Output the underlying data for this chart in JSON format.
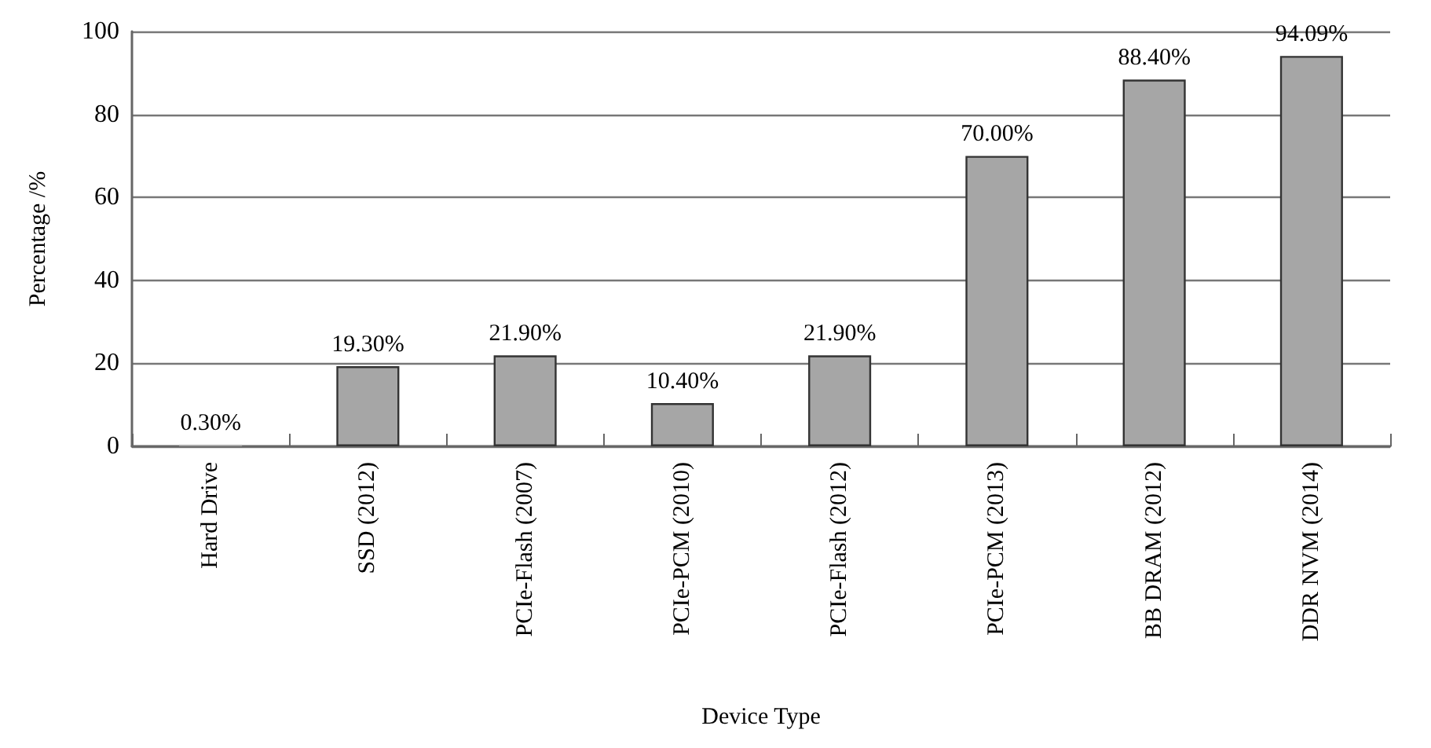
{
  "chart_data": {
    "type": "bar",
    "xlabel": "Device Type",
    "ylabel": "Percentage /%",
    "categories": [
      "Hard Drive",
      "SSD (2012)",
      "PCIe-Flash (2007)",
      "PCIe-PCM (2010)",
      "PCIe-Flash (2012)",
      "PCIe-PCM (2013)",
      "BB DRAM (2012)",
      "DDR NVM (2014)"
    ],
    "values": [
      0.3,
      19.3,
      21.9,
      10.4,
      21.9,
      70.0,
      88.4,
      94.09
    ],
    "value_labels": [
      "0.30%",
      "19.30%",
      "21.90%",
      "10.40%",
      "21.90%",
      "70.00%",
      "88.40%",
      "94.09%"
    ],
    "color": "#a6a6a6",
    "ylim": [
      0,
      100
    ],
    "yticks": [
      0,
      20,
      40,
      60,
      80,
      100
    ],
    "grid": "y"
  }
}
